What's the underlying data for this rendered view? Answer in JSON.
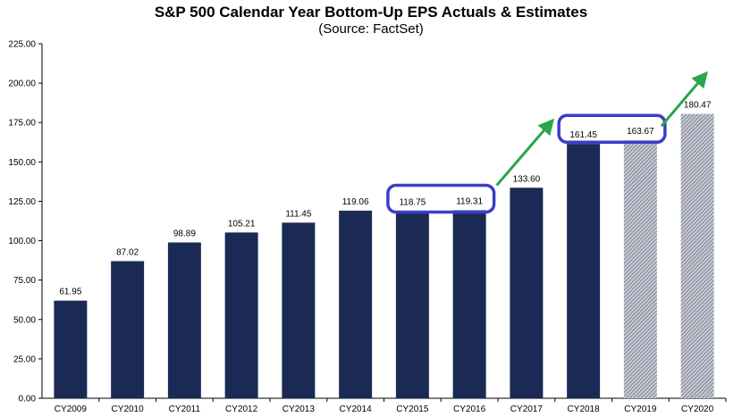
{
  "chart_data": {
    "type": "bar",
    "title": "S&P 500 Calendar Year Bottom-Up EPS Actuals & Estimates",
    "subtitle": "(Source: FactSet)",
    "xlabel": "",
    "ylabel": "",
    "ylim": [
      0,
      225
    ],
    "yticks": [
      "0.00",
      "25.00",
      "50.00",
      "75.00",
      "100.00",
      "125.00",
      "150.00",
      "175.00",
      "200.00",
      "225.00"
    ],
    "grid": false,
    "categories": [
      "CY2009",
      "CY2010",
      "CY2011",
      "CY2012",
      "CY2013",
      "CY2014",
      "CY2015",
      "CY2016",
      "CY2017",
      "CY2018",
      "CY2019",
      "CY2020"
    ],
    "values": [
      61.95,
      87.02,
      98.89,
      105.21,
      111.45,
      119.06,
      118.75,
      119.31,
      133.6,
      161.45,
      163.67,
      180.47
    ],
    "value_labels": [
      "61.95",
      "87.02",
      "98.89",
      "105.21",
      "111.45",
      "119.06",
      "118.75",
      "119.31",
      "133.60",
      "161.45",
      "163.67",
      "180.47"
    ],
    "bar_styles": [
      "actual",
      "actual",
      "actual",
      "actual",
      "actual",
      "actual",
      "actual",
      "actual",
      "actual",
      "actual",
      "estimate",
      "estimate"
    ],
    "highlight_groups": [
      [
        "CY2015",
        "CY2016"
      ],
      [
        "CY2018",
        "CY2019"
      ]
    ],
    "arrows": [
      "CY2016 to CY2018",
      "CY2019 to CY2020"
    ],
    "colors": {
      "actual": "#1b2a55",
      "estimate_fill": "#c9ccd6",
      "estimate_hatch": "#5a6272",
      "highlight": "#3a3ec8",
      "arrow": "#2aa54a",
      "axis": "#000000"
    }
  }
}
